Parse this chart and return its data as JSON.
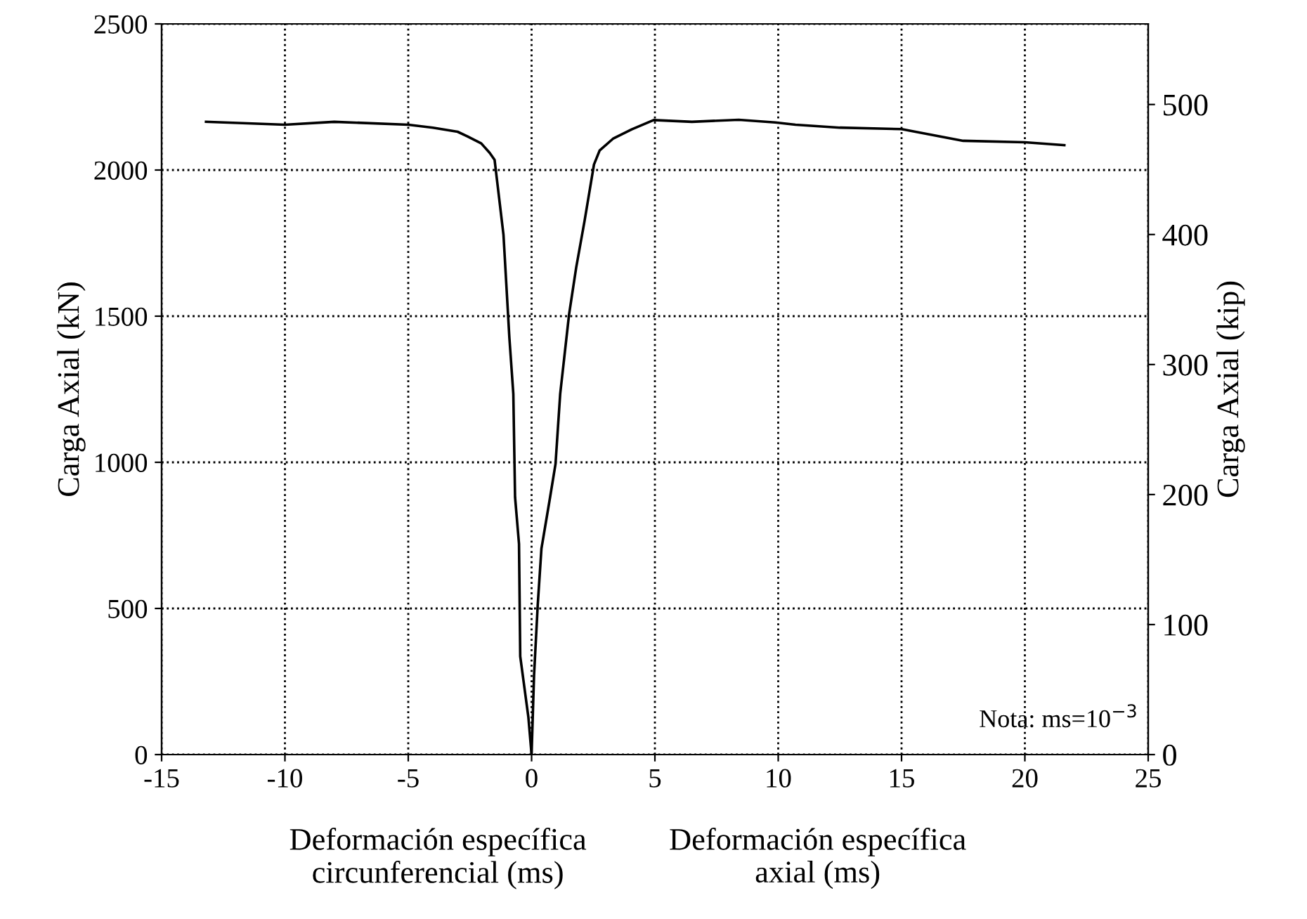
{
  "chart_data": {
    "type": "line",
    "xlabel": "Deformación específica\ncircunferencial (ms)",
    "ylabel": "Carga Axial (kN)",
    "y2label": "Carga Axial (kip)",
    "annotations": [
      "Deformación específica\naxial (ms)",
      "Nota: ms=10$^{−3}$"
    ],
    "series": [
      {
        "color": "#000000",
        "x": [
          0,
          -0.13,
          -0.46,
          -0.51,
          -0.67,
          -0.74,
          -0.9,
          -1.14,
          -1.5,
          -1.7,
          -2.04,
          -2.6,
          -3.0,
          -4.0,
          -5.0,
          -8.0,
          -10.0,
          -13.2
        ],
        "values": [
          0,
          128,
          336,
          721,
          881,
          1234,
          1426,
          1779,
          2035,
          2059,
          2091,
          2115,
          2131,
          2145,
          2155,
          2165,
          2155,
          2165
        ]
      },
      {
        "color": "#000000",
        "x": [
          0,
          0.1,
          0.25,
          0.4,
          0.72,
          0.97,
          1.16,
          1.52,
          1.81,
          2.15,
          2.53,
          2.76,
          3.3,
          4.06,
          4.95,
          6.5,
          8.4,
          9.87,
          10.7,
          12.5,
          15.0,
          17.5,
          20.0,
          21.6
        ],
        "values": [
          0,
          272,
          513,
          705,
          865,
          994,
          1234,
          1506,
          1667,
          1827,
          2019,
          2067,
          2107,
          2139,
          2171,
          2165,
          2172,
          2163,
          2155,
          2145,
          2140,
          2100,
          2095,
          2085
        ]
      }
    ],
    "xlim": [
      -15,
      25
    ],
    "xticks": [
      -15,
      -10,
      -5,
      0,
      5,
      10,
      15,
      20,
      25
    ],
    "ylim": [
      0,
      2500
    ],
    "yticks": [
      0,
      500,
      1000,
      1500,
      2000,
      2500
    ],
    "y2lim": [
      0,
      562
    ],
    "y2ticks": [
      0,
      100,
      200,
      300,
      400,
      500
    ],
    "grid": true,
    "line_style": "solid",
    "marker": "none"
  }
}
